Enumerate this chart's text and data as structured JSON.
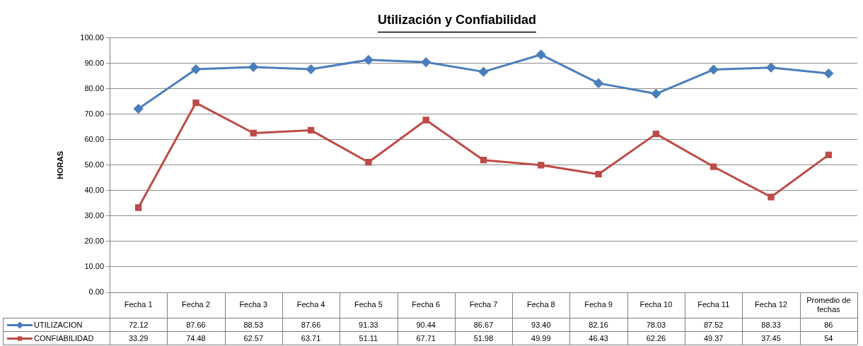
{
  "chart_data": {
    "type": "line",
    "title": "Utilización y Confiabilidad",
    "ylabel": "HORAS",
    "categories": [
      "Fecha 1",
      "Fecha 2",
      "Fecha 3",
      "Fecha 4",
      "Fecha 5",
      "Fecha 6",
      "Fecha 7",
      "Fecha 8",
      "Fecha 9",
      "Fecha 10",
      "Fecha 11",
      "Fecha 12",
      "Promedio de fechas"
    ],
    "series": [
      {
        "name": "UTILIZACION",
        "color": "#4a7ebb",
        "marker": "diamond",
        "values": [
          72.12,
          87.66,
          88.53,
          87.66,
          91.33,
          90.44,
          86.67,
          93.4,
          82.16,
          78.03,
          87.52,
          88.33,
          86
        ]
      },
      {
        "name": "CONFIABILIDAD",
        "color": "#be4b48",
        "marker": "square",
        "values": [
          33.29,
          74.48,
          62.57,
          63.71,
          51.11,
          67.71,
          51.98,
          49.99,
          46.43,
          62.26,
          49.37,
          37.45,
          54
        ]
      }
    ],
    "value_labels": [
      [
        "72.12",
        "87.66",
        "88.53",
        "87.66",
        "91.33",
        "90.44",
        "86.67",
        "93.40",
        "82.16",
        "78.03",
        "87.52",
        "88.33",
        "86"
      ],
      [
        "33.29",
        "74.48",
        "62.57",
        "63.71",
        "51.11",
        "67.71",
        "51.98",
        "49.99",
        "46.43",
        "62.26",
        "49.37",
        "37.45",
        "54"
      ]
    ],
    "ylim": [
      0,
      100
    ],
    "yticks": [
      {
        "value": 0,
        "label": "0.00"
      },
      {
        "value": 10,
        "label": "10.00"
      },
      {
        "value": 20,
        "label": "20.00"
      },
      {
        "value": 30,
        "label": "30.00"
      },
      {
        "value": 40,
        "label": "40.00"
      },
      {
        "value": 50,
        "label": "50.00"
      },
      {
        "value": 60,
        "label": "60.00"
      },
      {
        "value": 70,
        "label": "70.00"
      },
      {
        "value": 80,
        "label": "80.00"
      },
      {
        "value": 90,
        "label": "90.00"
      },
      {
        "value": 100,
        "label": "100.00"
      }
    ],
    "grid": "y",
    "legend": "bottom",
    "line_style": "solid"
  }
}
